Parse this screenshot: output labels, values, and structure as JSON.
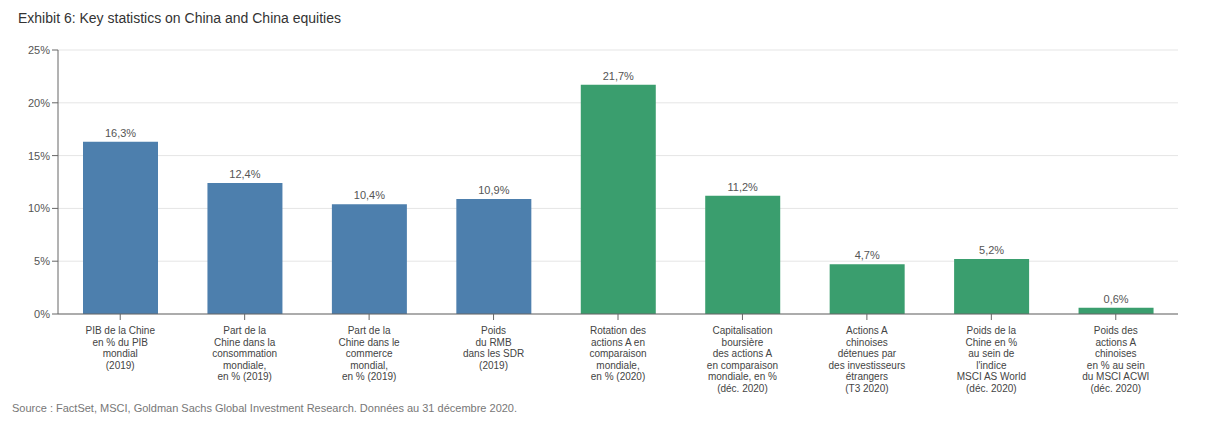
{
  "chart_data": {
    "type": "bar",
    "title": "Exhibit 6: Key statistics on China and China equities",
    "categories": [
      "PIB de la Chine\nen % du PIB\nmondial\n(2019)",
      "Part de la\nChine dans la\nconsommation\nmondiale,\nen % (2019)",
      "Part de la\nChine dans le\ncommerce\nmondial,\nen % (2019)",
      "Poids\ndu RMB\ndans les SDR\n(2019)",
      "Rotation des\nactions A en\ncomparaison\nmondiale,\nen % (2020)",
      "Capitalisation\nboursière\ndes actions A\nen comparaison\nmondiale, en %\n(déc. 2020)",
      "Actions A\nchinoises\ndétenues par\ndes investisseurs\nétrangers\n(T3 2020)",
      "Poids de la\nChine en %\nau sein de\nl'indice\nMSCI AS World\n(déc. 2020)",
      "Poids des\nactions A\nchinoises\nen % au sein\ndu MSCI ACWI\n(déc. 2020)"
    ],
    "values": [
      16.3,
      12.4,
      10.4,
      10.9,
      21.7,
      11.2,
      4.7,
      5.2,
      0.6
    ],
    "value_labels": [
      "16,3%",
      "12,4%",
      "10,4%",
      "10,9%",
      "21,7%",
      "11,2%",
      "4,7%",
      "5,2%",
      "0,6%"
    ],
    "colors": [
      "#4d7fad",
      "#4d7fad",
      "#4d7fad",
      "#4d7fad",
      "#3a9e6e",
      "#3a9e6e",
      "#3a9e6e",
      "#3a9e6e",
      "#3a9e6e"
    ],
    "data_labels": true,
    "ylim": [
      0,
      25
    ],
    "yticks": [
      {
        "value": 0,
        "label": "0%"
      },
      {
        "value": 5,
        "label": "5%"
      },
      {
        "value": 10,
        "label": "10%"
      },
      {
        "value": 15,
        "label": "15%"
      },
      {
        "value": 20,
        "label": "20%"
      },
      {
        "value": 25,
        "label": "25%"
      }
    ],
    "grid": true,
    "annotations": [
      "Source : FactSet, MSCI, Goldman Sachs Global Investment Research. Données au 31 décembre 2020."
    ]
  }
}
